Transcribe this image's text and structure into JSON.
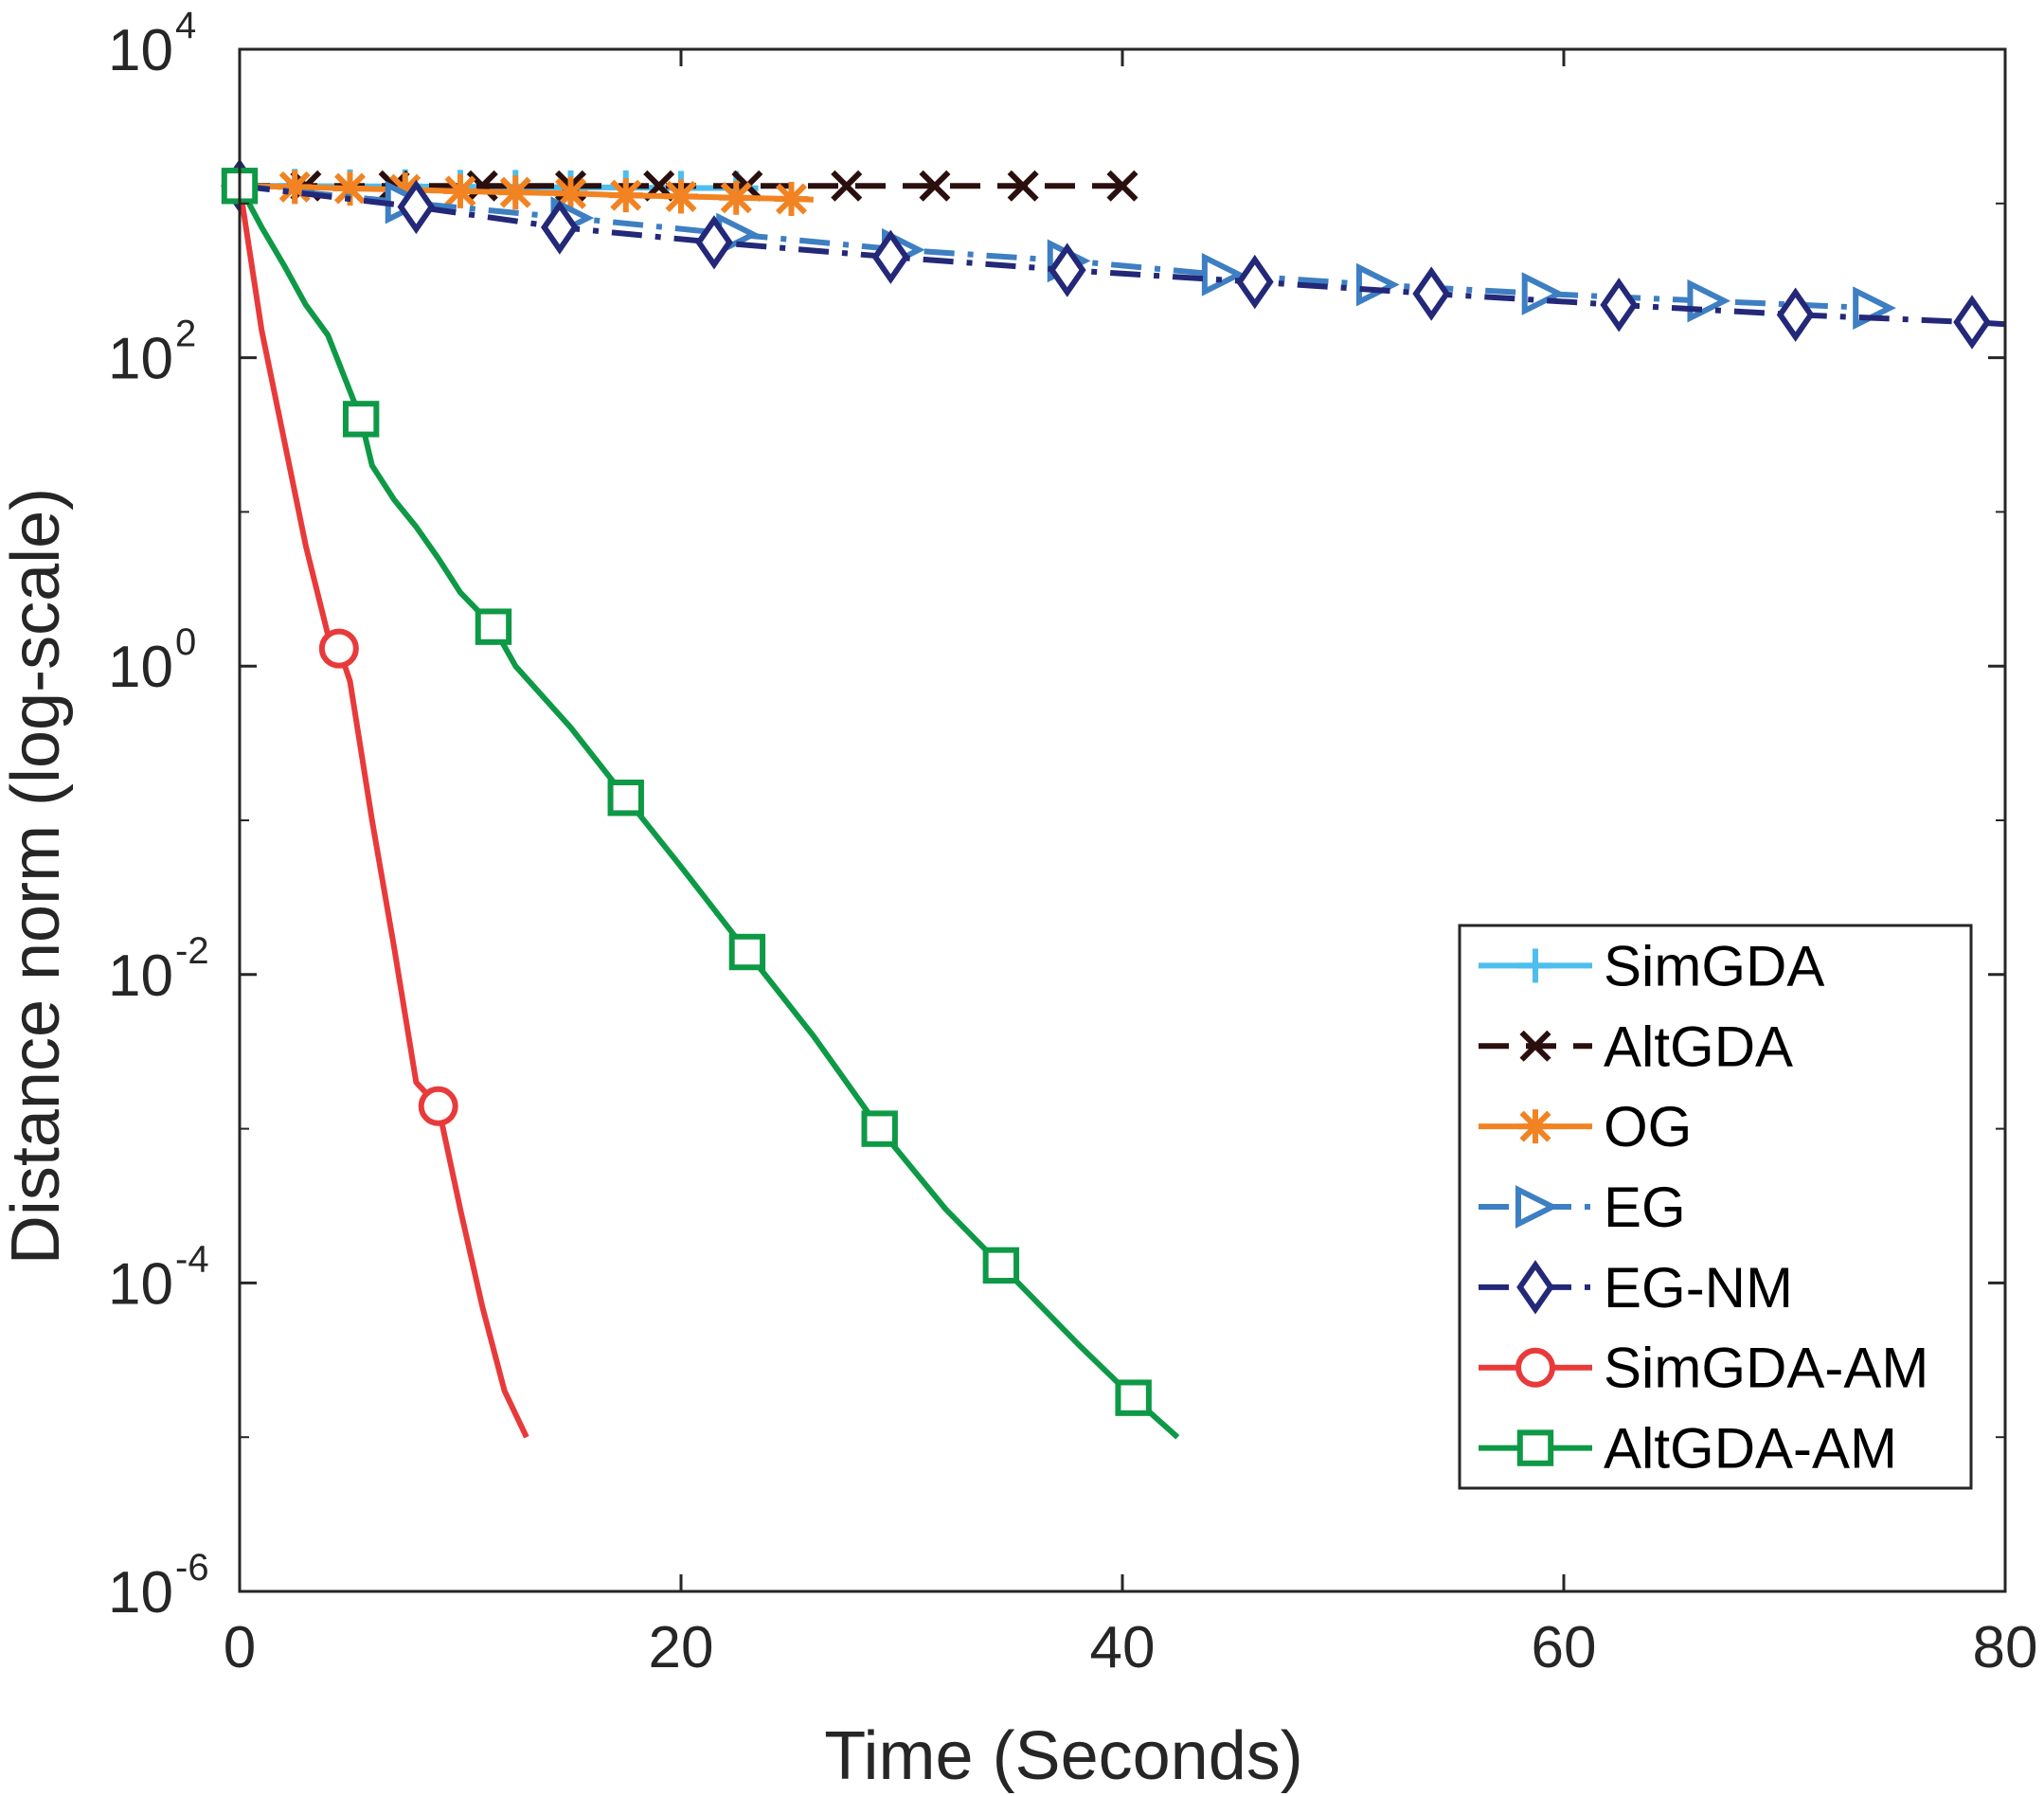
{
  "chart_data": {
    "type": "line",
    "title": "",
    "xlabel": "Time (Seconds)",
    "ylabel": "Distance norm (log-scale)",
    "xlim": [
      0,
      80
    ],
    "ylim": [
      1e-06,
      10000
    ],
    "yscale": "log",
    "legend_position": "bottom-right",
    "xticks": [
      0,
      20,
      40,
      60,
      80
    ],
    "xtick_labels": [
      "0",
      "20",
      "40",
      "60",
      "80"
    ],
    "yticks": [
      1e-06,
      0.0001,
      0.01,
      1,
      100,
      10000
    ],
    "ytick_labels": [
      {
        "base": "10",
        "exp": "-6"
      },
      {
        "base": "10",
        "exp": "-4"
      },
      {
        "base": "10",
        "exp": "-2"
      },
      {
        "base": "10",
        "exp": "0"
      },
      {
        "base": "10",
        "exp": "2"
      },
      {
        "base": "10",
        "exp": "4"
      }
    ],
    "series": [
      {
        "name": "SimGDA",
        "color": "#4DBEEE",
        "dash": "solid",
        "marker": "plus",
        "x": [
          0,
          2.5,
          5,
          7.5,
          10,
          12.5,
          15,
          17.5,
          20,
          22.5,
          23.5
        ],
        "y": [
          1300,
          1300,
          1290,
          1290,
          1280,
          1280,
          1270,
          1270,
          1260,
          1260,
          1255
        ],
        "marker_x": [
          2.5,
          5,
          7.5,
          10,
          12.5,
          15,
          17.5,
          20,
          22.5
        ]
      },
      {
        "name": "AltGDA",
        "color": "#2B0F0F",
        "dash": "dashed",
        "marker": "x",
        "x": [
          0,
          3,
          7,
          11,
          15,
          19,
          23,
          27.5,
          31.5,
          35.5,
          40
        ],
        "y": [
          1300,
          1300,
          1300,
          1300,
          1300,
          1300,
          1300,
          1300,
          1300,
          1300,
          1300
        ],
        "marker_x": [
          3,
          7,
          11,
          15,
          19,
          23,
          27.5,
          31.5,
          35.5,
          40
        ]
      },
      {
        "name": "OG",
        "color": "#F28322",
        "dash": "solid",
        "marker": "asterisk",
        "x": [
          0,
          2.5,
          5,
          7.5,
          10,
          12.5,
          15,
          17.5,
          20,
          22.5,
          25,
          26
        ],
        "y": [
          1300,
          1280,
          1250,
          1230,
          1200,
          1180,
          1160,
          1130,
          1110,
          1090,
          1070,
          1060
        ],
        "marker_x": [
          2.5,
          5,
          7.5,
          10,
          12.5,
          15,
          17.5,
          20,
          22.5,
          25
        ]
      },
      {
        "name": "EG",
        "color": "#3D7FC2",
        "dash": "dashdot",
        "marker": "triangle-right",
        "x": [
          0,
          8,
          16,
          23,
          30,
          38,
          44,
          51,
          59,
          66,
          74
        ],
        "y": [
          1300,
          1000,
          780,
          620,
          500,
          420,
          350,
          300,
          260,
          235,
          210
        ],
        "marker_x": [
          7.5,
          15,
          22.5,
          30,
          37.5,
          44.5,
          51.5,
          59,
          66.5,
          74
        ]
      },
      {
        "name": "EG-NM",
        "color": "#232878",
        "dash": "dashdot",
        "marker": "diamond",
        "x": [
          0,
          8,
          14.5,
          21.5,
          29.5,
          37.5,
          46,
          54,
          62.5,
          70.5,
          78.5,
          80
        ],
        "y": [
          1300,
          950,
          700,
          560,
          450,
          370,
          310,
          260,
          220,
          190,
          170,
          165
        ],
        "marker_x": [
          0,
          8,
          14.5,
          21.5,
          29.5,
          37.5,
          46,
          54,
          62.5,
          70.5,
          78.5
        ]
      },
      {
        "name": "SimGDA-AM",
        "color": "#E83A3A",
        "dash": "solid",
        "marker": "circle",
        "x": [
          0,
          1,
          2,
          3,
          4,
          4.5,
          5,
          6,
          7,
          8,
          9,
          10,
          11,
          12,
          13
        ],
        "y": [
          1300,
          150,
          30,
          6,
          1.6,
          1.3,
          0.8,
          0.1,
          0.015,
          0.002,
          0.0014,
          0.0003,
          7e-05,
          2e-05,
          1e-05
        ],
        "marker_x": [
          4.5,
          9
        ]
      },
      {
        "name": "AltGDA-AM",
        "color": "#0E9946",
        "dash": "solid",
        "marker": "square",
        "x": [
          0,
          1,
          2,
          3,
          4,
          5.5,
          6,
          7,
          8,
          9,
          10,
          11.5,
          12.5,
          15,
          17.5,
          20,
          23,
          26,
          29,
          32,
          35,
          38,
          40.5,
          42.5
        ],
        "y": [
          1300,
          700,
          400,
          220,
          140,
          40,
          20,
          12,
          8,
          5,
          3,
          1.8,
          1,
          0.4,
          0.14,
          0.05,
          0.014,
          0.004,
          0.001,
          0.0003,
          0.00011,
          4e-05,
          1.8e-05,
          1e-05
        ],
        "marker_x": [
          0,
          5.5,
          11.5,
          17.5,
          23,
          29,
          34.5,
          40.5
        ]
      }
    ]
  }
}
